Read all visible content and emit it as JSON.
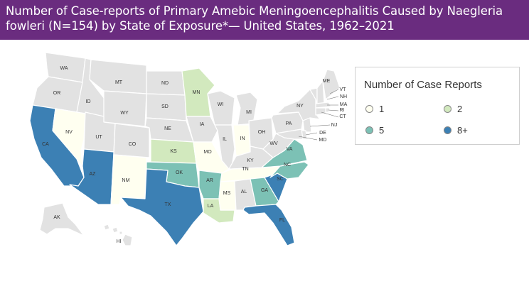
{
  "title": "Number of Case-reports of Primary Amebic Meningoencephalitis Caused by Naegleria fowleri (N=154) by State of Exposure*— United States, 1962–2021",
  "legend": {
    "title": "Number of Case Reports",
    "items": [
      {
        "label": "1",
        "color": "#fffff0"
      },
      {
        "label": "2",
        "color": "#d2e9be"
      },
      {
        "label": "5",
        "color": "#7cc1b5"
      },
      {
        "label": "8+",
        "color": "#3c80b4"
      }
    ]
  },
  "colors": {
    "none": "#e2e2e2",
    "c1": "#fffff0",
    "c2": "#d2e9be",
    "c5": "#7cc1b5",
    "c8": "#3c80b4",
    "header": "#6a2c7f"
  },
  "states": [
    {
      "abbr": "WA",
      "cat": "none"
    },
    {
      "abbr": "OR",
      "cat": "none"
    },
    {
      "abbr": "CA",
      "cat": "c8"
    },
    {
      "abbr": "NV",
      "cat": "c1"
    },
    {
      "abbr": "ID",
      "cat": "none"
    },
    {
      "abbr": "MT",
      "cat": "none"
    },
    {
      "abbr": "WY",
      "cat": "none"
    },
    {
      "abbr": "UT",
      "cat": "none"
    },
    {
      "abbr": "AZ",
      "cat": "c8"
    },
    {
      "abbr": "CO",
      "cat": "none"
    },
    {
      "abbr": "NM",
      "cat": "c1"
    },
    {
      "abbr": "ND",
      "cat": "none"
    },
    {
      "abbr": "SD",
      "cat": "none"
    },
    {
      "abbr": "NE",
      "cat": "none"
    },
    {
      "abbr": "KS",
      "cat": "c2"
    },
    {
      "abbr": "OK",
      "cat": "c5"
    },
    {
      "abbr": "TX",
      "cat": "c8"
    },
    {
      "abbr": "MN",
      "cat": "c2"
    },
    {
      "abbr": "IA",
      "cat": "none"
    },
    {
      "abbr": "MO",
      "cat": "c1"
    },
    {
      "abbr": "AR",
      "cat": "c5"
    },
    {
      "abbr": "LA",
      "cat": "c2"
    },
    {
      "abbr": "WI",
      "cat": "none"
    },
    {
      "abbr": "IL",
      "cat": "none"
    },
    {
      "abbr": "MI",
      "cat": "none"
    },
    {
      "abbr": "IN",
      "cat": "c1"
    },
    {
      "abbr": "OH",
      "cat": "none"
    },
    {
      "abbr": "KY",
      "cat": "none"
    },
    {
      "abbr": "TN",
      "cat": "c1"
    },
    {
      "abbr": "MS",
      "cat": "c1"
    },
    {
      "abbr": "AL",
      "cat": "none"
    },
    {
      "abbr": "GA",
      "cat": "c5"
    },
    {
      "abbr": "FL",
      "cat": "c8"
    },
    {
      "abbr": "SC",
      "cat": "c8"
    },
    {
      "abbr": "NC",
      "cat": "c5"
    },
    {
      "abbr": "VA",
      "cat": "c5"
    },
    {
      "abbr": "WV",
      "cat": "none"
    },
    {
      "abbr": "PA",
      "cat": "none"
    },
    {
      "abbr": "NY",
      "cat": "none"
    },
    {
      "abbr": "VT",
      "cat": "none"
    },
    {
      "abbr": "NH",
      "cat": "none"
    },
    {
      "abbr": "ME",
      "cat": "none"
    },
    {
      "abbr": "MA",
      "cat": "none"
    },
    {
      "abbr": "RI",
      "cat": "none"
    },
    {
      "abbr": "CT",
      "cat": "none"
    },
    {
      "abbr": "NJ",
      "cat": "none"
    },
    {
      "abbr": "DE",
      "cat": "none"
    },
    {
      "abbr": "MD",
      "cat": "none"
    },
    {
      "abbr": "AK",
      "cat": "none"
    },
    {
      "abbr": "HI",
      "cat": "none"
    }
  ]
}
